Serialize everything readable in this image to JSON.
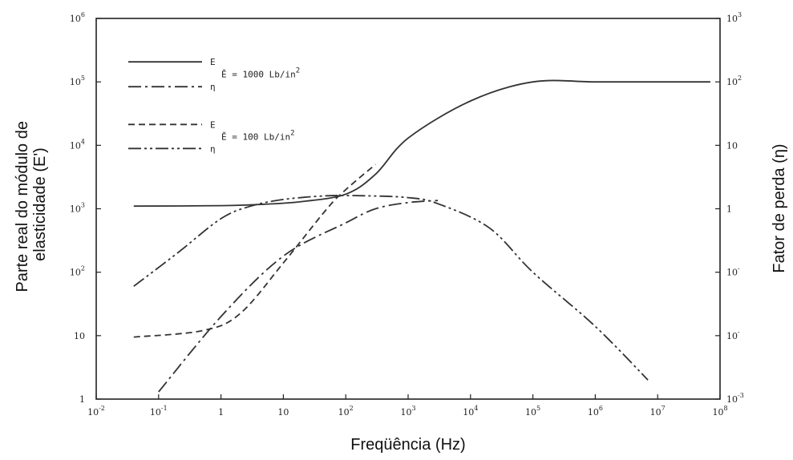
{
  "chart_data": {
    "type": "line",
    "xlabel": "Freqüência (Hz)",
    "ylabel_left": [
      "Parte real do módulo de",
      "elasticidade (E')"
    ],
    "ylabel_right": "Fator de perda (η)",
    "x_scale": "log",
    "xlim": [
      0.01,
      100000000
    ],
    "ylim_left": [
      1,
      1000000
    ],
    "ylim_right": [
      0.001,
      1000
    ],
    "x_ticks": [
      {
        "base": "10",
        "exp": "-2"
      },
      {
        "base": "10",
        "exp": "-1"
      },
      {
        "base": "1",
        "exp": ""
      },
      {
        "base": "10",
        "exp": ""
      },
      {
        "base": "10",
        "exp": "2"
      },
      {
        "base": "10",
        "exp": "3"
      },
      {
        "base": "10",
        "exp": "4"
      },
      {
        "base": "10",
        "exp": "5"
      },
      {
        "base": "10",
        "exp": "6"
      },
      {
        "base": "10",
        "exp": "7"
      },
      {
        "base": "10",
        "exp": "8"
      }
    ],
    "y_left_ticks": [
      {
        "base": "1",
        "exp": ""
      },
      {
        "base": "10",
        "exp": ""
      },
      {
        "base": "10",
        "exp": "2"
      },
      {
        "base": "10",
        "exp": "3"
      },
      {
        "base": "10",
        "exp": "4"
      },
      {
        "base": "10",
        "exp": "5"
      },
      {
        "base": "10",
        "exp": "6"
      }
    ],
    "y_right_ticks": [
      {
        "base": "10",
        "exp": "-3"
      },
      {
        "base": "10",
        "exp": "-"
      },
      {
        "base": "10",
        "exp": "-"
      },
      {
        "base": "1",
        "exp": ""
      },
      {
        "base": "10",
        "exp": ""
      },
      {
        "base": "10",
        "exp": "2"
      },
      {
        "base": "10",
        "exp": "3"
      }
    ],
    "legend": {
      "entries": [
        {
          "symbol": "E",
          "dash": "solid"
        },
        {
          "symbol": "η",
          "dash": "dashdot"
        },
        {
          "symbol": "E",
          "dash": "dashed"
        },
        {
          "symbol": "η",
          "dash": "dashdotdot"
        }
      ],
      "groups": [
        {
          "label": "Ě = 1000 Lb/in",
          "sup": "2"
        },
        {
          "label": "Ě = 100 Lb/in",
          "sup": "2"
        }
      ]
    },
    "series": [
      {
        "axis": "left",
        "dash": "solid",
        "x": [
          0.04,
          1,
          5,
          20,
          100,
          300,
          1000,
          10000,
          100000,
          1000000,
          10000000,
          70000000
        ],
        "y": [
          1100,
          1120,
          1180,
          1300,
          1700,
          3500,
          13000,
          50000,
          100000,
          100000,
          100000,
          100000
        ]
      },
      {
        "axis": "right",
        "dash": "dashdot",
        "x": [
          0.1,
          1,
          10,
          100,
          300,
          1000,
          3000
        ],
        "y": [
          0.0013,
          0.02,
          0.18,
          0.6,
          1.0,
          1.25,
          1.35
        ]
      },
      {
        "axis": "left",
        "dash": "dashed",
        "x": [
          0.04,
          0.5,
          2,
          10,
          50,
          100,
          300
        ],
        "y": [
          9.5,
          12,
          22,
          140,
          1000,
          2000,
          5000
        ]
      },
      {
        "axis": "right",
        "dash": "dashdotdot",
        "x": [
          0.04,
          0.2,
          1,
          3,
          10,
          50,
          200,
          1000,
          3000,
          20000,
          100000,
          1000000,
          7000000
        ],
        "y": [
          0.06,
          0.2,
          0.7,
          1.1,
          1.4,
          1.6,
          1.6,
          1.5,
          1.2,
          0.5,
          0.1,
          0.014,
          0.002
        ]
      }
    ]
  }
}
